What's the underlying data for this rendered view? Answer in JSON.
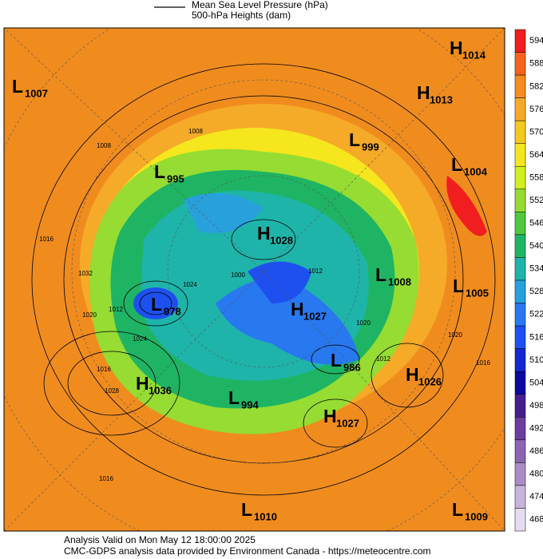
{
  "legend": {
    "line_label": "Mean Sea Level Pressure (hPa)",
    "fill_label": "500-hPa Heights (dam)"
  },
  "centers": [
    {
      "type": "H",
      "value": 1014
    },
    {
      "type": "L",
      "value": 1007
    },
    {
      "type": "H",
      "value": 1013
    },
    {
      "type": "L",
      "value": 999
    },
    {
      "type": "L",
      "value": 1004
    },
    {
      "type": "L",
      "value": 995
    },
    {
      "type": "H",
      "value": 1028
    },
    {
      "type": "L",
      "value": 1008
    },
    {
      "type": "L",
      "value": 1005
    },
    {
      "type": "L",
      "value": 978
    },
    {
      "type": "H",
      "value": 1027
    },
    {
      "type": "L",
      "value": 986
    },
    {
      "type": "H",
      "value": 1026
    },
    {
      "type": "H",
      "value": 1036
    },
    {
      "type": "L",
      "value": 994
    },
    {
      "type": "H",
      "value": 1027
    },
    {
      "type": "L",
      "value": 1010
    },
    {
      "type": "L",
      "value": 1009
    }
  ],
  "contour_labels": [
    1008,
    1012,
    1016,
    1016,
    1020,
    1024,
    1028,
    1032,
    1012,
    1020,
    1020,
    1016,
    1016,
    1000,
    1024,
    1008,
    1012
  ],
  "colorbar": {
    "ticks": [
      594,
      588,
      582,
      576,
      570,
      564,
      558,
      552,
      546,
      540,
      534,
      528,
      522,
      516,
      510,
      504,
      498,
      492,
      486,
      480,
      474,
      468
    ],
    "colors": [
      "#f01e1e",
      "#f5641e",
      "#f58c1e",
      "#f5aa28",
      "#f5c81e",
      "#f5e61e",
      "#d2f01e",
      "#96dc32",
      "#50c83c",
      "#1eb464",
      "#1eb4aa",
      "#28a0dc",
      "#2878f0",
      "#1e50f0",
      "#1428d2",
      "#0a0aa0",
      "#461e8c",
      "#6e3ca0",
      "#8c64b4",
      "#aa8cc8",
      "#c8b4dc",
      "#e6dcf0"
    ]
  },
  "footer": {
    "line1": "Analysis Valid on Mon May 12 18:00:00 2025",
    "line2": "CMC-GDPS analysis data provided by Environment Canada - https://meteocentre.com"
  }
}
